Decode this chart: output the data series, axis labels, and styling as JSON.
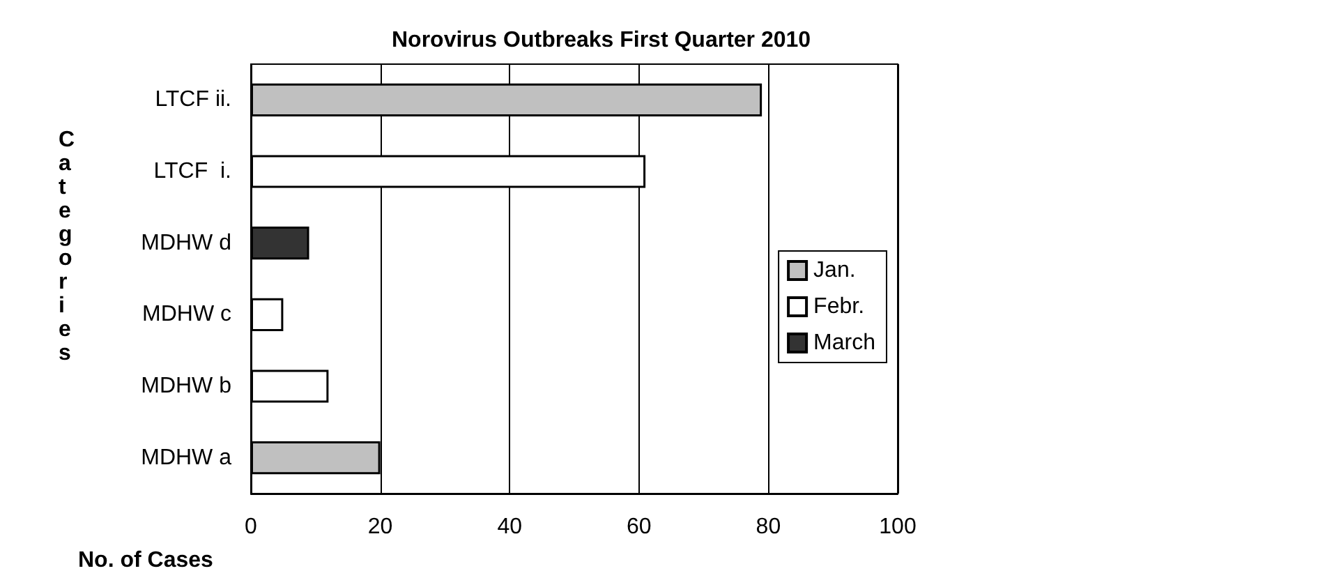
{
  "chart_data": {
    "type": "bar",
    "orientation": "horizontal",
    "stacked": true,
    "title": "Norovirus Outbreaks First Quarter 2010",
    "xlabel": "No. of Cases",
    "ylabel": "Categories",
    "categories": [
      "LTCF ii.",
      "LTCF  i.",
      "MDHW d",
      "MDHW c",
      "MDHW b",
      "MDHW a"
    ],
    "series": [
      {
        "name": "Jan.",
        "color": "#c0c0c0",
        "values": [
          79,
          null,
          null,
          null,
          null,
          20
        ]
      },
      {
        "name": "Febr.",
        "color": "#ffffff",
        "values": [
          null,
          61,
          null,
          5,
          12,
          null
        ]
      },
      {
        "name": "March",
        "color": "#333333",
        "values": [
          null,
          null,
          9,
          null,
          null,
          null
        ]
      }
    ],
    "xlim": [
      0,
      100
    ],
    "xticks": [
      0,
      20,
      40,
      60,
      80,
      100
    ],
    "grid": "x",
    "legend": "right"
  }
}
